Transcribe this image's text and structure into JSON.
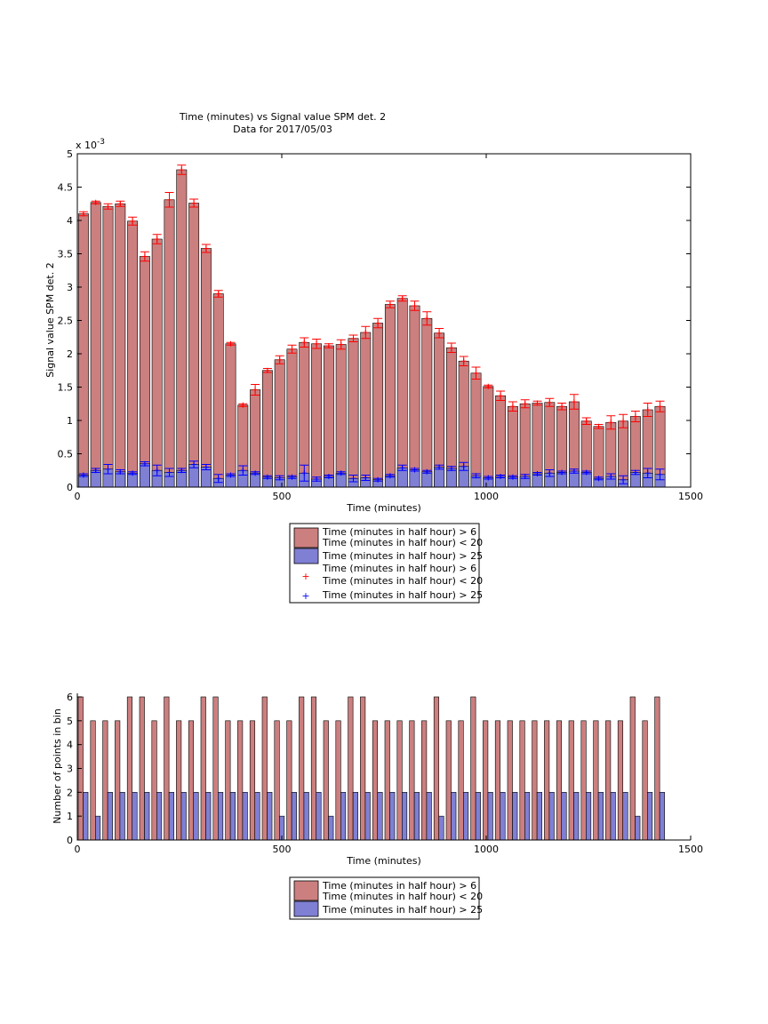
{
  "chart_data": [
    {
      "type": "bar",
      "title": "Time (minutes) vs Signal value SPM det. 2",
      "subtitle": "Data for 2017/05/03",
      "xlabel": "Time (minutes)",
      "ylabel": "Signal value SPM det. 2",
      "y_exponent_label": "x 10",
      "y_exponent_power": "-3",
      "xlim": [
        0,
        1500
      ],
      "ylim": [
        0,
        5
      ],
      "x_ticks": [
        "0",
        "500",
        "1000",
        "1500"
      ],
      "y_ticks": [
        "0",
        "0.5",
        "1",
        "1.5",
        "2",
        "2.5",
        "3",
        "3.5",
        "4",
        "4.5",
        "5"
      ],
      "grid": false,
      "legend_placement": "below",
      "x": [
        15,
        45,
        75,
        105,
        135,
        165,
        195,
        225,
        255,
        285,
        315,
        345,
        375,
        405,
        435,
        465,
        495,
        525,
        555,
        585,
        615,
        645,
        675,
        705,
        735,
        765,
        795,
        825,
        855,
        885,
        915,
        945,
        975,
        1005,
        1035,
        1065,
        1095,
        1125,
        1155,
        1185,
        1215,
        1245,
        1275,
        1305,
        1335,
        1365,
        1395,
        1425
      ],
      "series": [
        {
          "name": "Time (minutes in half hour) > 6\nTime (minutes in half hour) < 20",
          "color": "#cc7f7f",
          "values": [
            4.1,
            4.27,
            4.21,
            4.25,
            3.99,
            3.46,
            3.72,
            4.31,
            4.76,
            4.26,
            3.58,
            2.9,
            2.15,
            1.23,
            1.46,
            1.75,
            1.91,
            2.07,
            2.17,
            2.15,
            2.12,
            2.14,
            2.23,
            2.32,
            2.46,
            2.74,
            2.83,
            2.72,
            2.53,
            2.31,
            2.09,
            1.89,
            1.71,
            1.51,
            1.37,
            1.21,
            1.25,
            1.26,
            1.27,
            1.21,
            1.28,
            0.99,
            0.91,
            0.97,
            0.99,
            1.06,
            1.16,
            1.21
          ],
          "errors": [
            0.03,
            0.02,
            0.04,
            0.04,
            0.06,
            0.07,
            0.07,
            0.11,
            0.07,
            0.06,
            0.06,
            0.05,
            0.02,
            0.02,
            0.08,
            0.03,
            0.06,
            0.06,
            0.07,
            0.07,
            0.03,
            0.07,
            0.05,
            0.09,
            0.07,
            0.05,
            0.04,
            0.07,
            0.1,
            0.07,
            0.07,
            0.07,
            0.09,
            0.02,
            0.07,
            0.07,
            0.06,
            0.03,
            0.06,
            0.05,
            0.11,
            0.05,
            0.03,
            0.1,
            0.1,
            0.08,
            0.1,
            0.08
          ]
        },
        {
          "name": "Time (minutes in half hour) > 25",
          "color": "#7f7fd4",
          "values": [
            0.18,
            0.25,
            0.27,
            0.23,
            0.21,
            0.35,
            0.25,
            0.22,
            0.25,
            0.34,
            0.3,
            0.13,
            0.18,
            0.25,
            0.21,
            0.15,
            0.14,
            0.15,
            0.21,
            0.12,
            0.16,
            0.21,
            0.13,
            0.14,
            0.11,
            0.17,
            0.29,
            0.26,
            0.23,
            0.3,
            0.28,
            0.31,
            0.17,
            0.14,
            0.16,
            0.15,
            0.16,
            0.2,
            0.21,
            0.22,
            0.24,
            0.22,
            0.13,
            0.16,
            0.11,
            0.22,
            0.21,
            0.19
          ],
          "errors": [
            0.02,
            0.03,
            0.07,
            0.03,
            0.02,
            0.03,
            0.08,
            0.06,
            0.03,
            0.05,
            0.04,
            0.06,
            0.02,
            0.07,
            0.02,
            0.02,
            0.03,
            0.02,
            0.12,
            0.03,
            0.02,
            0.02,
            0.05,
            0.04,
            0.02,
            0.02,
            0.04,
            0.02,
            0.02,
            0.03,
            0.03,
            0.06,
            0.03,
            0.02,
            0.02,
            0.02,
            0.03,
            0.02,
            0.05,
            0.02,
            0.03,
            0.02,
            0.02,
            0.04,
            0.06,
            0.03,
            0.07,
            0.08
          ]
        }
      ],
      "markers": [
        {
          "name": "Time (minutes in half hour) > 6\nTime (minutes in half hour) < 20",
          "symbol": "+",
          "color": "#ff0000"
        },
        {
          "name": "Time (minutes in half hour) > 25",
          "symbol": "+",
          "color": "#0000ff"
        }
      ]
    },
    {
      "type": "bar",
      "title": "",
      "xlabel": "Time (minutes)",
      "ylabel": "Number of points in bin",
      "xlim": [
        0,
        1500
      ],
      "ylim": [
        0,
        6
      ],
      "x_ticks": [
        "0",
        "500",
        "1000",
        "1500"
      ],
      "y_ticks": [
        "0",
        "1",
        "2",
        "3",
        "4",
        "5",
        "6"
      ],
      "grid": false,
      "legend_placement": "below",
      "x": [
        15,
        45,
        75,
        105,
        135,
        165,
        195,
        225,
        255,
        285,
        315,
        345,
        375,
        405,
        435,
        465,
        495,
        525,
        555,
        585,
        615,
        645,
        675,
        705,
        735,
        765,
        795,
        825,
        855,
        885,
        915,
        945,
        975,
        1005,
        1035,
        1065,
        1095,
        1125,
        1155,
        1185,
        1215,
        1245,
        1275,
        1305,
        1335,
        1365,
        1395,
        1425
      ],
      "series": [
        {
          "name": "Time (minutes in half hour) > 6\nTime (minutes in half hour) < 20",
          "color": "#cc7f7f",
          "values": [
            6,
            5,
            5,
            5,
            6,
            6,
            5,
            6,
            5,
            5,
            6,
            6,
            5,
            5,
            5,
            6,
            5,
            5,
            6,
            6,
            5,
            5,
            6,
            6,
            5,
            5,
            5,
            5,
            5,
            6,
            5,
            5,
            6,
            5,
            5,
            5,
            5,
            5,
            5,
            5,
            5,
            5,
            5,
            5,
            5,
            6,
            5,
            6
          ]
        },
        {
          "name": "Time (minutes in half hour) > 25",
          "color": "#7f7fd4",
          "values": [
            2,
            1,
            2,
            2,
            2,
            2,
            2,
            2,
            2,
            2,
            2,
            2,
            2,
            2,
            2,
            2,
            1,
            2,
            2,
            2,
            1,
            2,
            2,
            2,
            2,
            2,
            2,
            2,
            2,
            1,
            2,
            2,
            2,
            2,
            2,
            2,
            2,
            2,
            2,
            2,
            2,
            2,
            2,
            2,
            2,
            1,
            2,
            2
          ]
        }
      ]
    }
  ]
}
